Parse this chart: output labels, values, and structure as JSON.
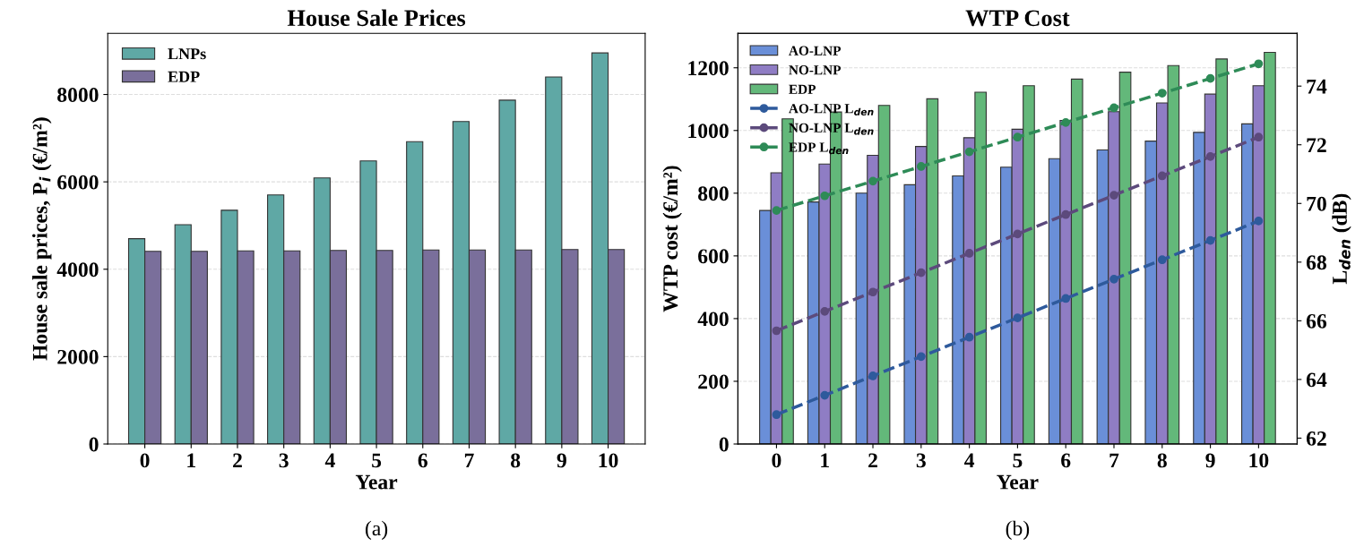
{
  "chart_data": [
    {
      "type": "bar",
      "title": "House Sale Prices",
      "xlabel": "Year",
      "ylabel": "House sale prices, P$_{i}$ (€/m²)",
      "categories": [
        "0",
        "1",
        "2",
        "3",
        "4",
        "5",
        "6",
        "7",
        "8",
        "9",
        "10"
      ],
      "series": [
        {
          "name": "LNPs",
          "color": "#5fa8a5",
          "values": [
            4700,
            5020,
            5350,
            5700,
            6090,
            6480,
            6920,
            7380,
            7870,
            8400,
            8950
          ]
        },
        {
          "name": "EDP",
          "color": "#7a6f9b",
          "values": [
            4410,
            4410,
            4420,
            4420,
            4430,
            4430,
            4440,
            4440,
            4440,
            4450,
            4450
          ]
        }
      ],
      "ylim": [
        0,
        9400
      ],
      "yticks": [
        0,
        2000,
        4000,
        6000,
        8000
      ],
      "grid": "y",
      "legend": "top left",
      "annotations": [
        "(a)"
      ]
    },
    {
      "type": "bar",
      "title": "WTP Cost",
      "xlabel": "Year",
      "ylabel": "WTP cost (€/m²)",
      "y2label": "L$_{den}$ (dB)",
      "categories": [
        "0",
        "1",
        "2",
        "3",
        "4",
        "5",
        "6",
        "7",
        "8",
        "9",
        "10"
      ],
      "series": [
        {
          "name": "AO-LNP",
          "color": "#6a8fd8",
          "values": [
            745,
            772,
            800,
            827,
            855,
            883,
            910,
            938,
            966,
            994,
            1021
          ]
        },
        {
          "name": "NO-LNP",
          "color": "#8f7dc4",
          "values": [
            865,
            893,
            921,
            949,
            977,
            1004,
            1032,
            1060,
            1088,
            1116,
            1143
          ]
        },
        {
          "name": "EDP",
          "color": "#63b87a",
          "values": [
            1037,
            1059,
            1080,
            1101,
            1122,
            1143,
            1164,
            1186,
            1207,
            1228,
            1249
          ]
        },
        {
          "name": "AO-LNP L$_{den}$",
          "type": "line",
          "axis": "y2",
          "marker": "circle",
          "line_style": "dashed",
          "color": "#2e5a9c",
          "values": [
            62.8,
            63.46,
            64.12,
            64.78,
            65.44,
            66.1,
            66.76,
            67.42,
            68.08,
            68.74,
            69.4
          ]
        },
        {
          "name": "NO-LNP L$_{den}$",
          "type": "line",
          "axis": "y2",
          "marker": "circle",
          "line_style": "dashed",
          "color": "#5c4a7c",
          "values": [
            65.66,
            66.32,
            66.98,
            67.64,
            68.3,
            68.96,
            69.62,
            70.28,
            70.94,
            71.6,
            72.26
          ]
        },
        {
          "name": "EDP L$_{den}$",
          "type": "line",
          "axis": "y2",
          "marker": "circle",
          "line_style": "dashed",
          "color": "#2e8b57",
          "values": [
            69.76,
            70.26,
            70.76,
            71.26,
            71.76,
            72.26,
            72.76,
            73.26,
            73.76,
            74.26,
            74.76
          ]
        }
      ],
      "ylim": [
        0,
        1310
      ],
      "yticks": [
        0,
        200,
        400,
        600,
        800,
        1000,
        1200
      ],
      "y2lim": [
        61.8,
        75.8
      ],
      "y2ticks": [
        62,
        64,
        66,
        68,
        70,
        72,
        74
      ],
      "grid": "y",
      "legend": "top left",
      "annotations": [
        "(b)"
      ]
    }
  ]
}
